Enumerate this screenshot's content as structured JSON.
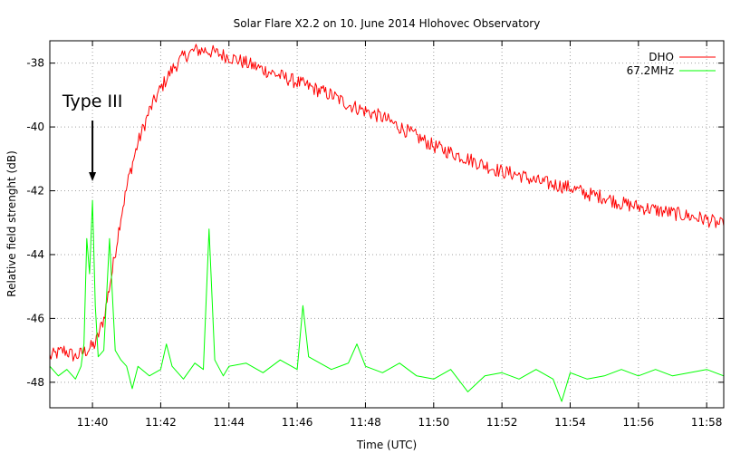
{
  "chart_data": {
    "type": "line",
    "title": "Solar Flare X2.2 on 10. June 2014 Hlohovec Observatory",
    "xlabel": "Time (UTC)",
    "ylabel": "Relative field strenght (dB)",
    "x_unit": "minutes",
    "xlim": [
      "11:38:45",
      "11:58:30"
    ],
    "ylim": [
      -48.8,
      -37.3
    ],
    "x_ticks": [
      "11:40",
      "11:42",
      "11:44",
      "11:46",
      "11:48",
      "11:50",
      "11:52",
      "11:54",
      "11:56",
      "11:58"
    ],
    "y_ticks": [
      -48,
      -46,
      -44,
      -42,
      -40,
      -38
    ],
    "grid": true,
    "legend_position": "top-right",
    "annotation": {
      "text": "Type III",
      "x": "11:40",
      "y": -41.7
    },
    "series": [
      {
        "name": "DHO",
        "color": "#ff0000",
        "points": [
          [
            "11:38:45",
            -47.2
          ],
          [
            "11:39:10",
            -47.0
          ],
          [
            "11:39:30",
            -47.2
          ],
          [
            "11:39:50",
            -47.0
          ],
          [
            "11:40:05",
            -46.8
          ],
          [
            "11:40:20",
            -46.0
          ],
          [
            "11:40:35",
            -44.5
          ],
          [
            "11:40:50",
            -42.8
          ],
          [
            "11:41:05",
            -41.5
          ],
          [
            "11:41:20",
            -40.5
          ],
          [
            "11:41:40",
            -39.5
          ],
          [
            "11:42:00",
            -38.8
          ],
          [
            "11:42:20",
            -38.2
          ],
          [
            "11:42:40",
            -37.8
          ],
          [
            "11:43:00",
            -37.6
          ],
          [
            "11:43:20",
            -37.6
          ],
          [
            "11:43:40",
            -37.7
          ],
          [
            "11:44:00",
            -37.8
          ],
          [
            "11:44:30",
            -38.0
          ],
          [
            "11:45:00",
            -38.2
          ],
          [
            "11:45:30",
            -38.4
          ],
          [
            "11:46:00",
            -38.6
          ],
          [
            "11:46:30",
            -38.8
          ],
          [
            "11:47:00",
            -39.0
          ],
          [
            "11:47:30",
            -39.3
          ],
          [
            "11:48:00",
            -39.5
          ],
          [
            "11:48:30",
            -39.7
          ],
          [
            "11:49:00",
            -40.0
          ],
          [
            "11:49:30",
            -40.3
          ],
          [
            "11:50:00",
            -40.6
          ],
          [
            "11:50:30",
            -40.8
          ],
          [
            "11:51:00",
            -41.0
          ],
          [
            "11:51:30",
            -41.2
          ],
          [
            "11:52:00",
            -41.4
          ],
          [
            "11:52:30",
            -41.5
          ],
          [
            "11:53:00",
            -41.7
          ],
          [
            "11:53:30",
            -41.8
          ],
          [
            "11:54:00",
            -41.9
          ],
          [
            "11:54:30",
            -42.1
          ],
          [
            "11:55:00",
            -42.2
          ],
          [
            "11:55:30",
            -42.4
          ],
          [
            "11:56:00",
            -42.5
          ],
          [
            "11:56:30",
            -42.6
          ],
          [
            "11:57:00",
            -42.7
          ],
          [
            "11:57:30",
            -42.8
          ],
          [
            "11:58:00",
            -42.9
          ],
          [
            "11:58:30",
            -43.1
          ]
        ]
      },
      {
        "name": "67.2MHz",
        "color": "#00ff00",
        "points": [
          [
            "11:38:45",
            -47.5
          ],
          [
            "11:39:00",
            -47.8
          ],
          [
            "11:39:15",
            -47.6
          ],
          [
            "11:39:30",
            -47.9
          ],
          [
            "11:39:40",
            -47.5
          ],
          [
            "11:39:45",
            -46.8
          ],
          [
            "11:39:50",
            -43.5
          ],
          [
            "11:39:55",
            -44.6
          ],
          [
            "11:40:00",
            -42.3
          ],
          [
            "11:40:05",
            -45.6
          ],
          [
            "11:40:10",
            -47.2
          ],
          [
            "11:40:20",
            -47.0
          ],
          [
            "11:40:30",
            -43.5
          ],
          [
            "11:40:40",
            -47.0
          ],
          [
            "11:40:50",
            -47.3
          ],
          [
            "11:41:00",
            -47.5
          ],
          [
            "11:41:10",
            -48.2
          ],
          [
            "11:41:20",
            -47.5
          ],
          [
            "11:41:40",
            -47.8
          ],
          [
            "11:42:00",
            -47.6
          ],
          [
            "11:42:10",
            -46.8
          ],
          [
            "11:42:20",
            -47.5
          ],
          [
            "11:42:40",
            -47.9
          ],
          [
            "11:43:00",
            -47.4
          ],
          [
            "11:43:15",
            -47.6
          ],
          [
            "11:43:25",
            -43.2
          ],
          [
            "11:43:35",
            -47.3
          ],
          [
            "11:43:50",
            -47.8
          ],
          [
            "11:44:00",
            -47.5
          ],
          [
            "11:44:30",
            -47.4
          ],
          [
            "11:45:00",
            -47.7
          ],
          [
            "11:45:30",
            -47.3
          ],
          [
            "11:46:00",
            -47.6
          ],
          [
            "11:46:10",
            -45.6
          ],
          [
            "11:46:20",
            -47.2
          ],
          [
            "11:46:40",
            -47.4
          ],
          [
            "11:47:00",
            -47.6
          ],
          [
            "11:47:30",
            -47.4
          ],
          [
            "11:47:45",
            -46.8
          ],
          [
            "11:48:00",
            -47.5
          ],
          [
            "11:48:30",
            -47.7
          ],
          [
            "11:49:00",
            -47.4
          ],
          [
            "11:49:30",
            -47.8
          ],
          [
            "11:50:00",
            -47.9
          ],
          [
            "11:50:30",
            -47.6
          ],
          [
            "11:51:00",
            -48.3
          ],
          [
            "11:51:30",
            -47.8
          ],
          [
            "11:52:00",
            -47.7
          ],
          [
            "11:52:30",
            -47.9
          ],
          [
            "11:53:00",
            -47.6
          ],
          [
            "11:53:30",
            -47.9
          ],
          [
            "11:53:45",
            -48.6
          ],
          [
            "11:54:00",
            -47.7
          ],
          [
            "11:54:30",
            -47.9
          ],
          [
            "11:55:00",
            -47.8
          ],
          [
            "11:55:30",
            -47.6
          ],
          [
            "11:56:00",
            -47.8
          ],
          [
            "11:56:30",
            -47.6
          ],
          [
            "11:57:00",
            -47.8
          ],
          [
            "11:57:30",
            -47.7
          ],
          [
            "11:58:00",
            -47.6
          ],
          [
            "11:58:30",
            -47.8
          ]
        ]
      }
    ]
  }
}
